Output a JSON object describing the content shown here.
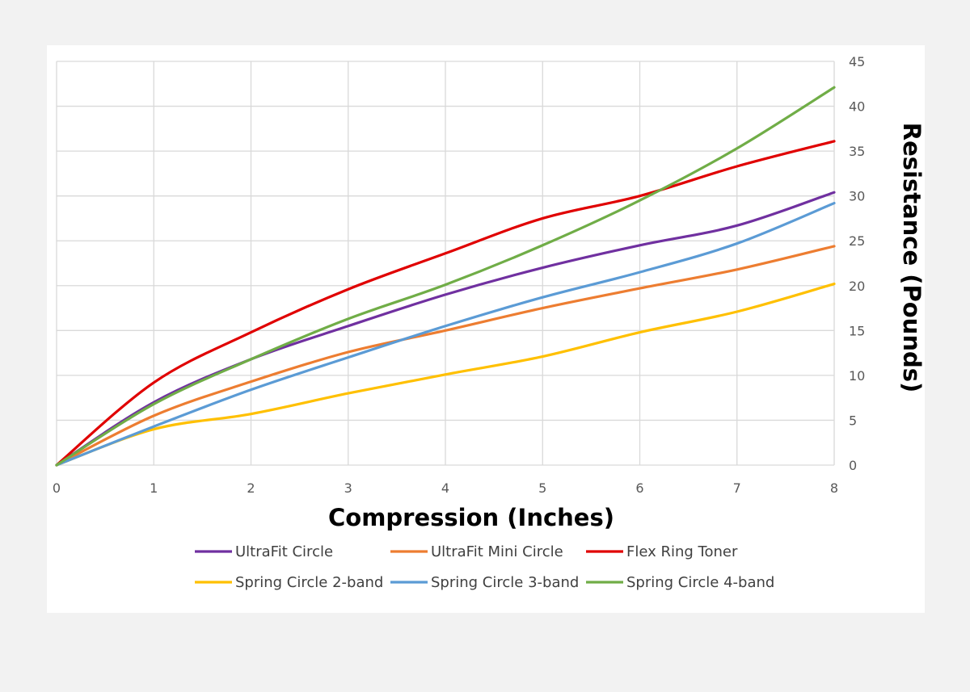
{
  "chart_data": {
    "type": "line",
    "xlabel": "Compression (Inches)",
    "ylabel": "Resistance (Pounds)",
    "xlim": [
      0,
      8
    ],
    "ylim": [
      0,
      45
    ],
    "x_ticks": [
      "0",
      "1",
      "2",
      "3",
      "4",
      "5",
      "6",
      "7",
      "8"
    ],
    "y_ticks": [
      "0",
      "5",
      "10",
      "15",
      "20",
      "25",
      "30",
      "35",
      "40",
      "45"
    ],
    "grid": true,
    "y_axis_position": "right",
    "legend_position": "bottom",
    "x": [
      0,
      1,
      2,
      3,
      4,
      5,
      6,
      7,
      8
    ],
    "series": [
      {
        "name": "UltraFit Circle",
        "color": "#7030a0",
        "values": [
          0,
          7.0,
          11.8,
          15.5,
          19.0,
          22.0,
          24.5,
          26.7,
          30.4
        ]
      },
      {
        "name": "UltraFit Mini Circle",
        "color": "#ed7d31",
        "values": [
          0,
          5.5,
          9.3,
          12.6,
          15.0,
          17.5,
          19.7,
          21.8,
          24.4
        ]
      },
      {
        "name": "Flex Ring Toner",
        "color": "#e00000",
        "values": [
          0,
          9.2,
          14.8,
          19.6,
          23.6,
          27.5,
          30.0,
          33.3,
          36.1
        ]
      },
      {
        "name": "Spring Circle 2-band",
        "color": "#ffc000",
        "values": [
          0,
          4.0,
          5.7,
          8.0,
          10.1,
          12.1,
          14.8,
          17.1,
          20.2
        ]
      },
      {
        "name": "Spring Circle 3-band",
        "color": "#5b9bd5",
        "values": [
          0,
          4.3,
          8.4,
          12.0,
          15.5,
          18.7,
          21.5,
          24.7,
          29.2
        ]
      },
      {
        "name": "Spring Circle 4-band",
        "color": "#70ad47",
        "values": [
          0,
          6.8,
          11.8,
          16.3,
          20.1,
          24.5,
          29.5,
          35.3,
          42.1
        ]
      }
    ]
  }
}
